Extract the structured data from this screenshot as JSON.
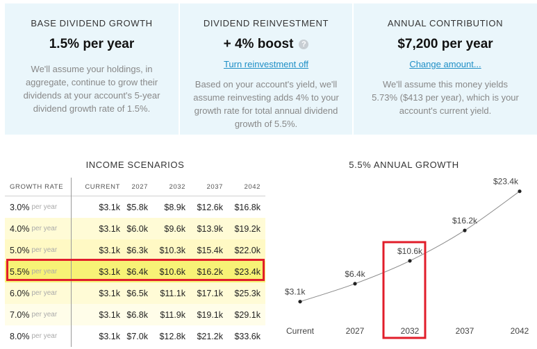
{
  "panels": [
    {
      "title": "BASE DIVIDEND GROWTH",
      "value": "1.5% per year",
      "description": "We'll assume your holdings, in aggregate, continue to grow their dividends at your account's 5-year dividend growth rate of 1.5%."
    },
    {
      "title": "DIVIDEND REINVESTMENT",
      "value": "+ 4% boost",
      "help_icon": "?",
      "link": "Turn reinvestment off",
      "description": "Based on your account's yield, we'll assume reinvesting adds 4% to your growth rate for total annual dividend growth of 5.5%."
    },
    {
      "title": "ANNUAL CONTRIBUTION",
      "value": "$7,200 per year",
      "link": "Change amount...",
      "description": "We'll assume this money yields 5.73% ($413 per year), which is your account's current yield."
    }
  ],
  "table": {
    "title": "INCOME SCENARIOS",
    "headers": [
      "GROWTH RATE",
      "CURRENT",
      "2027",
      "2032",
      "2037",
      "2042"
    ],
    "rate_unit": "per year",
    "rows": [
      {
        "rate": "3.0%",
        "values": [
          "$3.1k",
          "$5.8k",
          "$8.9k",
          "$12.6k",
          "$16.8k"
        ]
      },
      {
        "rate": "4.0%",
        "values": [
          "$3.1k",
          "$6.0k",
          "$9.6k",
          "$13.9k",
          "$19.2k"
        ]
      },
      {
        "rate": "5.0%",
        "values": [
          "$3.1k",
          "$6.3k",
          "$10.3k",
          "$15.4k",
          "$22.0k"
        ]
      },
      {
        "rate": "5.5%",
        "values": [
          "$3.1k",
          "$6.4k",
          "$10.6k",
          "$16.2k",
          "$23.4k"
        ]
      },
      {
        "rate": "6.0%",
        "values": [
          "$3.1k",
          "$6.5k",
          "$11.1k",
          "$17.1k",
          "$25.3k"
        ]
      },
      {
        "rate": "7.0%",
        "values": [
          "$3.1k",
          "$6.8k",
          "$11.9k",
          "$19.1k",
          "$29.1k"
        ]
      },
      {
        "rate": "8.0%",
        "values": [
          "$3.1k",
          "$7.0k",
          "$12.8k",
          "$21.2k",
          "$33.6k"
        ]
      }
    ],
    "selected_rate": "5.5%"
  },
  "chart_data": {
    "type": "line",
    "title": "5.5% ANNUAL GROWTH",
    "categories": [
      "Current",
      "2027",
      "2032",
      "2037",
      "2042"
    ],
    "values": [
      3.1,
      6.4,
      10.6,
      16.2,
      23.4
    ],
    "labels": [
      "$3.1k",
      "$6.4k",
      "$10.6k",
      "$16.2k",
      "$23.4k"
    ],
    "ylim": [
      0,
      24
    ],
    "grid": false,
    "highlighted_category": "2032",
    "colors": {
      "highlight": "#e11d2a",
      "line": "#888888"
    }
  }
}
